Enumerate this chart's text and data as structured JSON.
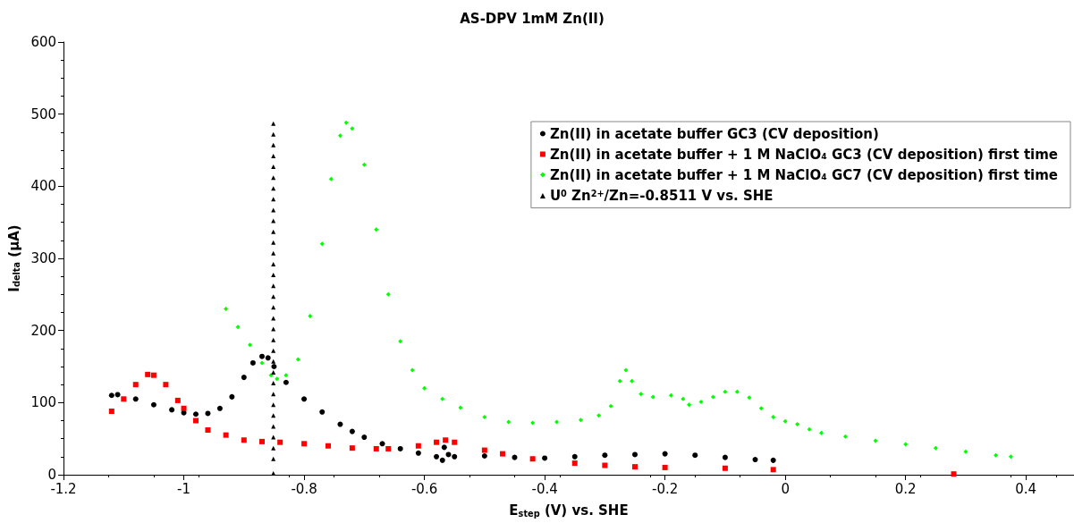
{
  "chart_data": {
    "type": "scatter",
    "title": "AS-DPV 1mM Zn(II)",
    "xlabel": "E$_{step}$ (V) vs. SHE",
    "ylabel": "I$_{delta}$ (μA)",
    "xlim": [
      -1.2,
      0.48
    ],
    "xticks": [
      -1.2,
      -1,
      -0.8,
      -0.6,
      -0.4,
      -0.2,
      0,
      0.2,
      0.4
    ],
    "ylim": [
      0,
      600
    ],
    "yticks": [
      0,
      100,
      200,
      300,
      400,
      500,
      600
    ],
    "grid": false,
    "legend": "top right",
    "series": [
      {
        "name": "Zn(II) in acetate buffer GC3 (CV deposition)",
        "color": "#000000",
        "marker": "circle",
        "x": [
          -1.12,
          -1.11,
          -1.08,
          -1.05,
          -1.02,
          -1.0,
          -0.98,
          -0.96,
          -0.94,
          -0.92,
          -0.9,
          -0.885,
          -0.87,
          -0.86,
          -0.85,
          -0.83,
          -0.8,
          -0.77,
          -0.74,
          -0.72,
          -0.7,
          -0.67,
          -0.64,
          -0.61,
          -0.58,
          -0.57,
          -0.567,
          -0.56,
          -0.55,
          -0.5,
          -0.45,
          -0.4,
          -0.35,
          -0.3,
          -0.25,
          -0.2,
          -0.15,
          -0.1,
          -0.05,
          -0.02
        ],
        "values": [
          110,
          111,
          105,
          97,
          90,
          86,
          84,
          85,
          92,
          108,
          135,
          155,
          164,
          162,
          150,
          128,
          105,
          87,
          70,
          60,
          52,
          43,
          36,
          30,
          25,
          20,
          38,
          28,
          25,
          26,
          24,
          23,
          25,
          27,
          28,
          29,
          27,
          24,
          21,
          20
        ]
      },
      {
        "name": "Zn(II) in acetate buffer + 1 M NaClO₄ GC3 (CV deposition) first time",
        "color": "#ff0000",
        "marker": "square",
        "x": [
          -1.12,
          -1.1,
          -1.08,
          -1.06,
          -1.05,
          -1.03,
          -1.01,
          -1.0,
          -0.98,
          -0.96,
          -0.93,
          -0.9,
          -0.87,
          -0.84,
          -0.8,
          -0.76,
          -0.72,
          -0.68,
          -0.66,
          -0.61,
          -0.58,
          -0.565,
          -0.55,
          -0.5,
          -0.47,
          -0.42,
          -0.35,
          -0.3,
          -0.25,
          -0.2,
          -0.1,
          -0.02,
          0.28
        ],
        "values": [
          88,
          105,
          125,
          139,
          138,
          125,
          103,
          92,
          75,
          62,
          55,
          48,
          46,
          45,
          43,
          40,
          37,
          36,
          36,
          40,
          45,
          48,
          45,
          34,
          29,
          22,
          16,
          13,
          11,
          10,
          9,
          7,
          1
        ]
      },
      {
        "name": "Zn(II) in acetate buffer + 1 M NaClO₄ GC7 (CV deposition) first time",
        "color": "#00ff00",
        "marker": "diamond",
        "x": [
          -0.93,
          -0.91,
          -0.89,
          -0.87,
          -0.855,
          -0.845,
          -0.83,
          -0.81,
          -0.79,
          -0.77,
          -0.755,
          -0.74,
          -0.73,
          -0.72,
          -0.7,
          -0.68,
          -0.66,
          -0.64,
          -0.62,
          -0.6,
          -0.57,
          -0.54,
          -0.5,
          -0.46,
          -0.42,
          -0.38,
          -0.34,
          -0.31,
          -0.29,
          -0.275,
          -0.265,
          -0.255,
          -0.24,
          -0.22,
          -0.19,
          -0.17,
          -0.16,
          -0.14,
          -0.12,
          -0.1,
          -0.08,
          -0.06,
          -0.04,
          -0.02,
          0,
          0.02,
          0.04,
          0.06,
          0.1,
          0.15,
          0.2,
          0.25,
          0.3,
          0.35,
          0.375
        ],
        "values": [
          230,
          205,
          180,
          155,
          138,
          133,
          138,
          160,
          220,
          320,
          410,
          470,
          488,
          480,
          430,
          340,
          250,
          185,
          145,
          120,
          105,
          93,
          80,
          73,
          72,
          73,
          76,
          82,
          95,
          130,
          145,
          130,
          112,
          108,
          110,
          105,
          97,
          101,
          108,
          115,
          115,
          107,
          92,
          80,
          74,
          70,
          63,
          58,
          53,
          47,
          42,
          37,
          32,
          27,
          25
        ]
      },
      {
        "name": "U$^{0}$ Zn$^{2+}$/Zn=-0.8511 V vs. SHE",
        "color": "#000000",
        "marker": "triangle",
        "x": [
          -0.8511,
          -0.8511,
          -0.8511,
          -0.8511,
          -0.8511,
          -0.8511,
          -0.8511,
          -0.8511,
          -0.8511,
          -0.8511,
          -0.8511,
          -0.8511,
          -0.8511,
          -0.8511,
          -0.8511,
          -0.8511,
          -0.8511,
          -0.8511,
          -0.8511,
          -0.8511,
          -0.8511,
          -0.8511,
          -0.8511,
          -0.8511,
          -0.8511,
          -0.8511,
          -0.8511,
          -0.8511,
          -0.8511,
          -0.8511,
          -0.8511,
          -0.8511,
          -0.8511
        ],
        "values": [
          2,
          22,
          37,
          52,
          67,
          82,
          97,
          112,
          127,
          142,
          157,
          172,
          187,
          202,
          217,
          232,
          247,
          262,
          277,
          292,
          307,
          322,
          337,
          352,
          367,
          382,
          397,
          412,
          427,
          442,
          457,
          472,
          487
        ]
      }
    ]
  }
}
